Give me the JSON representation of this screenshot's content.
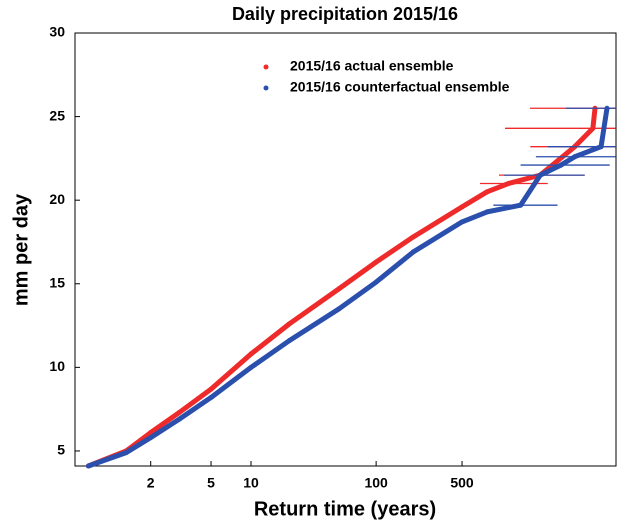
{
  "chart_data": {
    "type": "scatter",
    "title": "Daily precipitation 2015/16",
    "x_label": "Return time (years)",
    "y_label": "mm per day",
    "x_scale": "gumbel",
    "xlim": [
      1.06,
      9000
    ],
    "ylim": [
      4.1,
      30
    ],
    "xticks": [
      2,
      5,
      10,
      100,
      500
    ],
    "yticks": [
      5,
      10,
      15,
      20,
      25,
      30
    ],
    "series": [
      {
        "name": "2015/16 actual ensemble",
        "color": "#ee2a2a",
        "x": [
          1.12,
          1.5,
          2,
          3,
          5,
          10,
          20,
          50,
          100,
          200,
          500,
          800,
          1200,
          2170,
          4150,
          5830,
          6070
        ],
        "values": [
          4.1,
          5.0,
          6.1,
          7.3,
          8.7,
          10.8,
          12.6,
          14.7,
          16.3,
          17.8,
          19.6,
          20.5,
          21.0,
          21.5,
          23.2,
          24.3,
          25.5
        ],
        "xerr_low": [
          null,
          null,
          null,
          null,
          null,
          null,
          null,
          null,
          null,
          null,
          null,
          null,
          700,
          1000,
          1800,
          1120,
          1790
        ],
        "xerr_high": [
          null,
          null,
          null,
          null,
          null,
          null,
          null,
          null,
          null,
          null,
          null,
          null,
          2500,
          5000,
          8960,
          8960,
          8960
        ]
      },
      {
        "name": "2015/16 counterfactual ensemble",
        "color": "#2b4fad",
        "x": [
          1.12,
          1.5,
          2,
          3,
          5,
          10,
          20,
          50,
          100,
          200,
          500,
          800,
          1500,
          2170,
          3200,
          4150,
          6800,
          7600
        ],
        "values": [
          4.1,
          4.9,
          5.8,
          6.9,
          8.2,
          10.0,
          11.6,
          13.5,
          15.1,
          16.9,
          18.7,
          19.3,
          19.7,
          21.5,
          22.1,
          22.6,
          23.2,
          25.5
        ],
        "xerr_low": [
          null,
          null,
          null,
          null,
          null,
          null,
          null,
          null,
          null,
          null,
          null,
          null,
          900,
          1100,
          1500,
          2000,
          2500,
          3500
        ],
        "xerr_high": [
          null,
          null,
          null,
          null,
          null,
          null,
          null,
          null,
          null,
          null,
          null,
          null,
          3000,
          5000,
          8000,
          8960,
          8960,
          8960
        ]
      }
    ]
  }
}
